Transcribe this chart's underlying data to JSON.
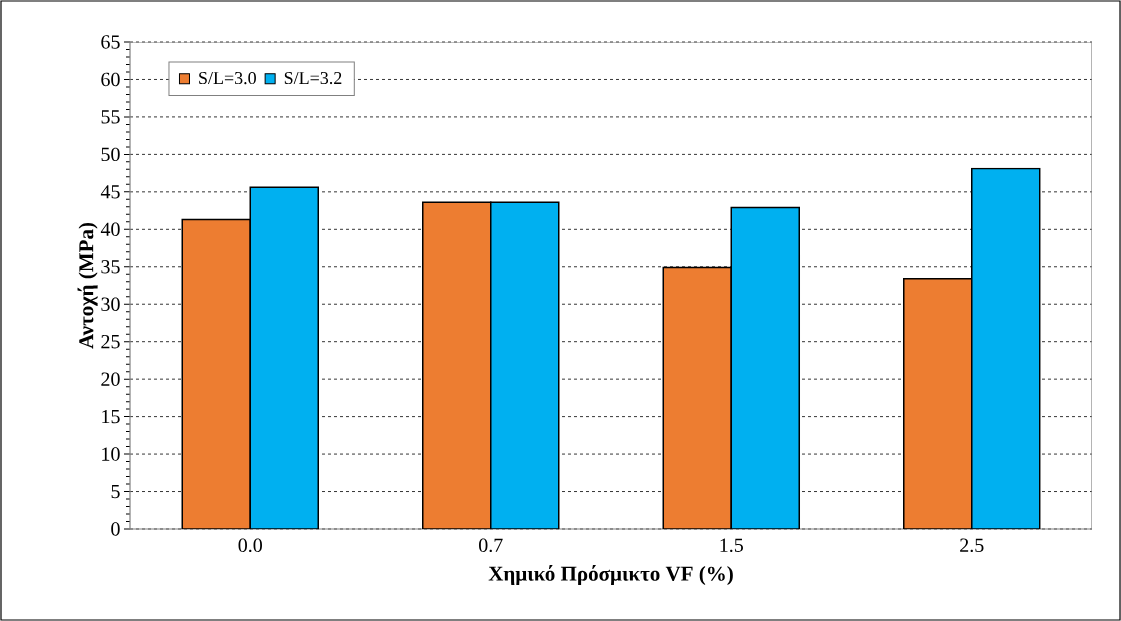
{
  "chart_data": {
    "type": "bar",
    "xlabel": "Χημικό Πρόσμικτο VF (%)",
    "ylabel": "Αντοχή (MPa)",
    "categories": [
      "0.0",
      "0.7",
      "1.5",
      "2.5"
    ],
    "series": [
      {
        "name": "S/L=3.0",
        "color": "#ed7d31",
        "values": [
          41.3,
          43.6,
          34.9,
          33.4
        ]
      },
      {
        "name": "S/L=3.2",
        "color": "#00b0f0",
        "values": [
          45.6,
          43.6,
          42.9,
          48.1
        ]
      }
    ],
    "ylim": [
      0,
      65
    ],
    "yticks": [
      0,
      5,
      10,
      15,
      20,
      25,
      30,
      35,
      40,
      45,
      50,
      55,
      60,
      65
    ],
    "grid": "y",
    "legend": "top left"
  }
}
